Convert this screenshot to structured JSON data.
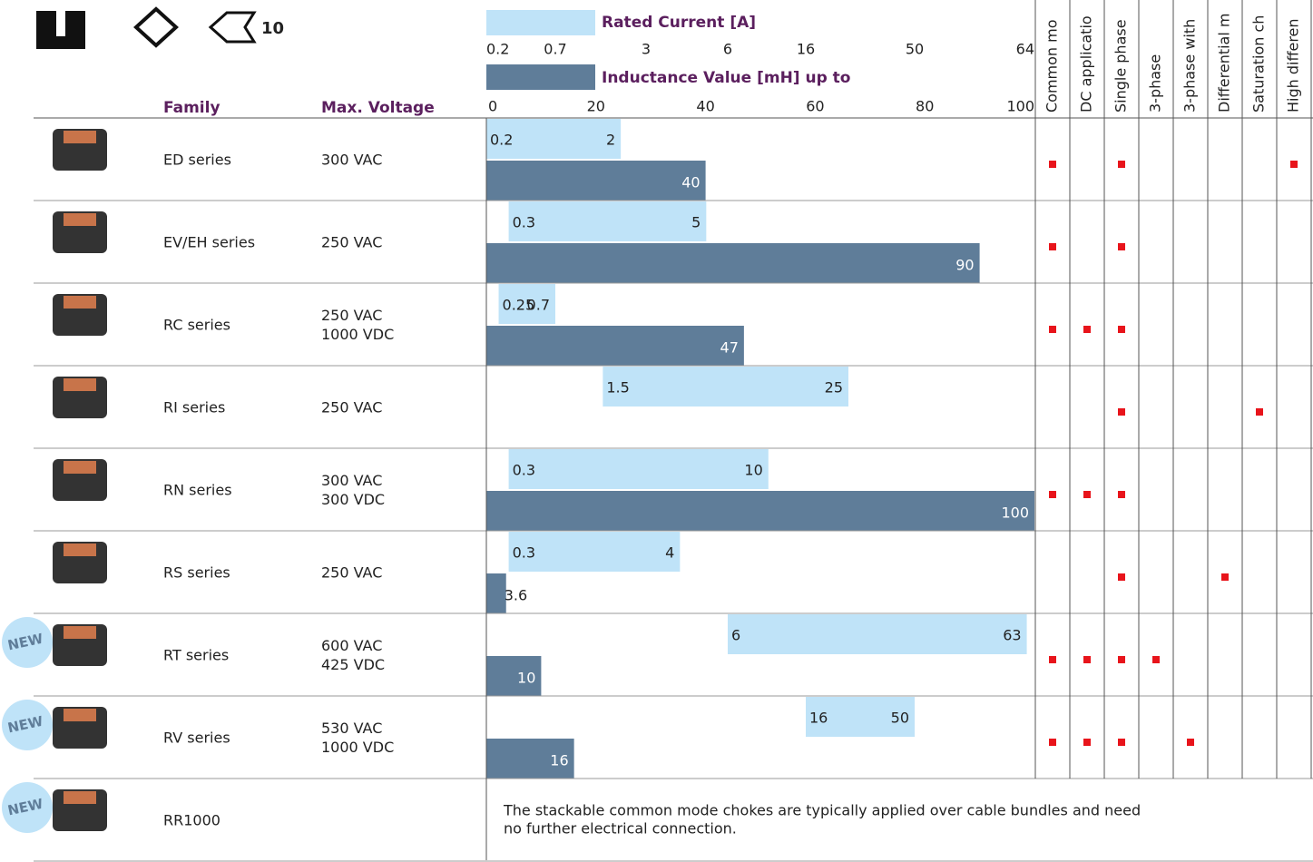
{
  "header": {
    "current_label": "Rated Current [A]",
    "current_ticks": [
      0.2,
      0.7,
      3,
      6,
      16,
      50,
      64
    ],
    "inductance_label": "Inductance Value [mH] up to",
    "inductance_ticks": [
      0,
      20,
      40,
      60,
      80,
      100
    ],
    "family": "Family",
    "voltage": "Max. Voltage",
    "logo_text": "10",
    "features": [
      "Common mo",
      "DC applicatio",
      "Single phase",
      "3-phase",
      "3-phase with",
      "Differential m",
      "Saturation ch",
      "High differen"
    ]
  },
  "rows": [
    {
      "family": "ED series",
      "voltage": [
        "300 VAC"
      ],
      "current": [
        0.2,
        2
      ],
      "inductance": 40,
      "features": [
        true,
        false,
        true,
        false,
        false,
        false,
        false,
        true
      ]
    },
    {
      "family": "EV/EH series",
      "voltage": [
        "250 VAC"
      ],
      "current": [
        0.3,
        5
      ],
      "inductance": 90,
      "features": [
        true,
        false,
        true,
        false,
        false,
        false,
        false,
        false
      ]
    },
    {
      "family": "RC series",
      "voltage": [
        "250 VAC",
        "1000 VDC"
      ],
      "current": [
        0.25,
        0.7
      ],
      "inductance": 47,
      "features": [
        true,
        true,
        true,
        false,
        false,
        false,
        false,
        false
      ]
    },
    {
      "family": "RI series",
      "voltage": [
        "250 VAC"
      ],
      "current": [
        1.5,
        25
      ],
      "features": [
        false,
        false,
        true,
        false,
        false,
        false,
        true,
        false
      ]
    },
    {
      "family": "RN series",
      "voltage": [
        "300 VAC",
        "300 VDC"
      ],
      "current": [
        0.3,
        10
      ],
      "inductance": 100,
      "features": [
        true,
        true,
        true,
        false,
        false,
        false,
        false,
        false
      ]
    },
    {
      "family": "RS series",
      "voltage": [
        "250 VAC"
      ],
      "current": [
        0.3,
        4
      ],
      "inductance": 3.6,
      "features": [
        false,
        false,
        true,
        false,
        false,
        true,
        false,
        false
      ]
    },
    {
      "family": "RT series",
      "badge": "NEW",
      "voltage": [
        "600 VAC",
        "425 VDC"
      ],
      "current": [
        6,
        63
      ],
      "inductance": 10,
      "features": [
        true,
        true,
        true,
        true,
        false,
        false,
        false,
        false
      ]
    },
    {
      "family": "RV series",
      "badge": "NEW",
      "voltage": [
        "530 VAC",
        "1000 VDC"
      ],
      "current": [
        16,
        50
      ],
      "inductance": 16,
      "features": [
        true,
        true,
        true,
        false,
        true,
        false,
        false,
        false
      ]
    },
    {
      "family": "RR1000",
      "badge": "NEW",
      "note": [
        "The stackable common mode chokes are typically applied over cable bundles and need",
        "no further electrical connection."
      ]
    }
  ]
}
